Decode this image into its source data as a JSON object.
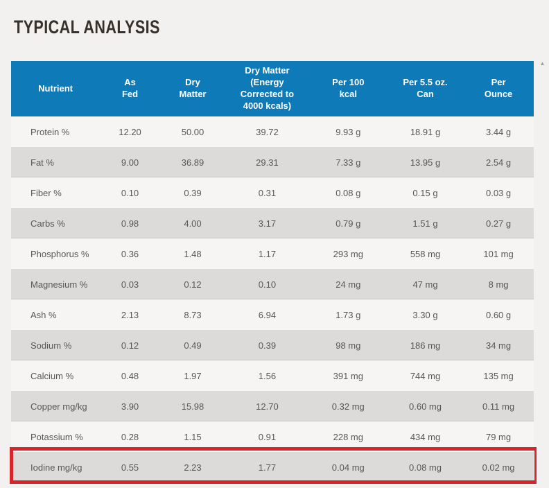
{
  "page": {
    "title": "TYPICAL ANALYSIS"
  },
  "colors": {
    "header_background": "#0e7ab7",
    "row_even": "#f6f5f4",
    "row_odd": "#dcdbd9",
    "highlight_border": "#d7262b",
    "page_background": "#f2f1ef",
    "title_text": "#38302b",
    "cell_text": "#575757"
  },
  "scrollbar": {
    "up_arrow": "▲"
  },
  "table": {
    "columns": [
      {
        "label": "Nutrient"
      },
      {
        "label": "As\nFed"
      },
      {
        "label": "Dry\nMatter"
      },
      {
        "label": "Dry Matter\n(Energy\nCorrected to\n4000 kcals)"
      },
      {
        "label": "Per 100\nkcal"
      },
      {
        "label": "Per 5.5 oz.\nCan"
      },
      {
        "label": "Per\nOunce"
      }
    ],
    "rows": [
      {
        "nutrient": "Protein %",
        "values": [
          "12.20",
          "50.00",
          "39.72",
          "9.93 g",
          "18.91 g",
          "3.44 g"
        ]
      },
      {
        "nutrient": "Fat %",
        "values": [
          "9.00",
          "36.89",
          "29.31",
          "7.33 g",
          "13.95 g",
          "2.54 g"
        ]
      },
      {
        "nutrient": "Fiber %",
        "values": [
          "0.10",
          "0.39",
          "0.31",
          "0.08 g",
          "0.15 g",
          "0.03 g"
        ]
      },
      {
        "nutrient": "Carbs %",
        "values": [
          "0.98",
          "4.00",
          "3.17",
          "0.79 g",
          "1.51 g",
          "0.27 g"
        ]
      },
      {
        "nutrient": "Phosphorus %",
        "values": [
          "0.36",
          "1.48",
          "1.17",
          "293 mg",
          "558 mg",
          "101 mg"
        ]
      },
      {
        "nutrient": "Magnesium %",
        "values": [
          "0.03",
          "0.12",
          "0.10",
          "24 mg",
          "47 mg",
          "8 mg"
        ]
      },
      {
        "nutrient": "Ash %",
        "values": [
          "2.13",
          "8.73",
          "6.94",
          "1.73 g",
          "3.30 g",
          "0.60 g"
        ]
      },
      {
        "nutrient": "Sodium %",
        "values": [
          "0.12",
          "0.49",
          "0.39",
          "98 mg",
          "186 mg",
          "34 mg"
        ]
      },
      {
        "nutrient": "Calcium %",
        "values": [
          "0.48",
          "1.97",
          "1.56",
          "391 mg",
          "744 mg",
          "135 mg"
        ]
      },
      {
        "nutrient": "Copper mg/kg",
        "values": [
          "3.90",
          "15.98",
          "12.70",
          "0.32 mg",
          "0.60 mg",
          "0.11 mg"
        ]
      },
      {
        "nutrient": "Potassium %",
        "values": [
          "0.28",
          "1.15",
          "0.91",
          "228 mg",
          "434 mg",
          "79 mg"
        ]
      },
      {
        "nutrient": "Iodine mg/kg",
        "values": [
          "0.55",
          "2.23",
          "1.77",
          "0.04 mg",
          "0.08 mg",
          "0.02 mg"
        ]
      }
    ],
    "highlighted_row": "Iodine mg/kg"
  }
}
